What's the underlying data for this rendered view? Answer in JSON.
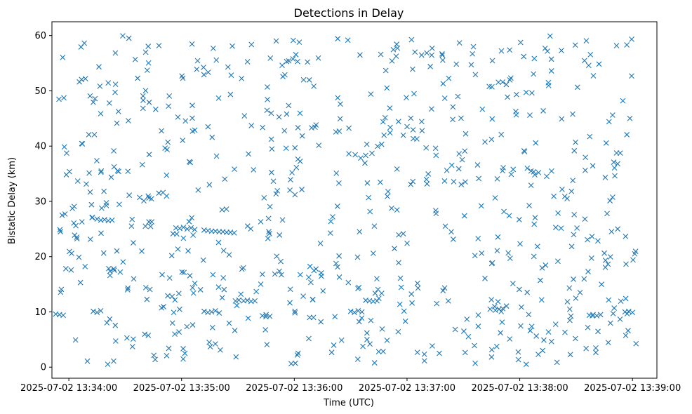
{
  "chart_data": {
    "type": "scatter",
    "title": "Detections in Delay",
    "xlabel": "Time (UTC)",
    "ylabel": "Bistatic Delay (km)",
    "marker": "x",
    "color": "#1f77b4",
    "xlim": [
      "2025-07-02 13:33:51",
      "2025-07-02 13:39:13"
    ],
    "ylim": [
      -2,
      62.5
    ],
    "x_ticks": [
      "2025-07-02 13:34:00",
      "2025-07-02 13:35:00",
      "2025-07-02 13:36:00",
      "2025-07-02 13:37:00",
      "2025-07-02 13:38:00",
      "2025-07-02 13:39:00"
    ],
    "y_ticks": [
      0,
      10,
      20,
      30,
      40,
      50,
      60
    ],
    "grid": false,
    "legend": "none",
    "clusters": [
      {
        "x": [
          "2025-07-02 13:33:53",
          "2025-07-02 13:33:55",
          "2025-07-02 13:33:57"
        ],
        "y": [
          9.6,
          9.5,
          9.4
        ]
      },
      {
        "x": [
          "2025-07-02 13:34:15",
          "2025-07-02 13:34:17",
          "2025-07-02 13:34:19",
          "2025-07-02 13:34:21",
          "2025-07-02 13:34:23"
        ],
        "y": [
          26.8,
          26.6,
          26.7,
          26.5,
          26.6
        ]
      },
      {
        "x": [
          "2025-07-02 13:34:13",
          "2025-07-02 13:34:15",
          "2025-07-02 13:34:17"
        ],
        "y": [
          10.1,
          9.9,
          10.2
        ]
      },
      {
        "x": [
          "2025-07-02 13:34:57",
          "2025-07-02 13:34:59",
          "2025-07-02 13:35:01",
          "2025-07-02 13:35:03",
          "2025-07-02 13:35:05",
          "2025-07-02 13:35:07"
        ],
        "y": [
          25.2,
          25.1,
          25.3,
          25.0,
          25.2,
          24.9
        ]
      },
      {
        "x": [
          "2025-07-02 13:35:12",
          "2025-07-02 13:35:14",
          "2025-07-02 13:35:16",
          "2025-07-02 13:35:18",
          "2025-07-02 13:35:20",
          "2025-07-02 13:35:22",
          "2025-07-02 13:35:24",
          "2025-07-02 13:35:26",
          "2025-07-02 13:35:28"
        ],
        "y": [
          24.8,
          24.7,
          24.6,
          24.6,
          24.5,
          24.5,
          24.4,
          24.4,
          24.3
        ]
      },
      {
        "x": [
          "2025-07-02 13:35:12",
          "2025-07-02 13:35:14",
          "2025-07-02 13:35:16",
          "2025-07-02 13:35:18",
          "2025-07-02 13:35:20"
        ],
        "y": [
          10.1,
          9.9,
          10.0,
          10.2,
          9.8
        ]
      },
      {
        "x": [
          "2025-07-02 13:35:33",
          "2025-07-02 13:35:35",
          "2025-07-02 13:35:37",
          "2025-07-02 13:35:39"
        ],
        "y": [
          12.0,
          12.1,
          11.9,
          12.0
        ]
      },
      {
        "x": [
          "2025-07-02 13:35:43",
          "2025-07-02 13:35:45",
          "2025-07-02 13:35:47"
        ],
        "y": [
          9.3,
          9.5,
          9.2
        ]
      },
      {
        "x": [
          "2025-07-02 13:36:30",
          "2025-07-02 13:36:32",
          "2025-07-02 13:36:34",
          "2025-07-02 13:36:36"
        ],
        "y": [
          10.1,
          9.9,
          10.2,
          10.0
        ]
      },
      {
        "x": [
          "2025-07-02 13:36:38",
          "2025-07-02 13:36:40",
          "2025-07-02 13:36:42",
          "2025-07-02 13:36:44"
        ],
        "y": [
          12.1,
          12.0,
          11.9,
          12.0
        ]
      },
      {
        "x": [
          "2025-07-02 13:37:47",
          "2025-07-02 13:37:49",
          "2025-07-02 13:37:51"
        ],
        "y": [
          10.3,
          10.5,
          10.6
        ]
      },
      {
        "x": [
          "2025-07-02 13:38:04",
          "2025-07-02 13:38:06",
          "2025-07-02 13:38:08",
          "2025-07-02 13:38:10"
        ],
        "y": [
          36.0,
          35.5,
          34.8,
          35.2
        ]
      },
      {
        "x": [
          "2025-07-02 13:38:37",
          "2025-07-02 13:38:39",
          "2025-07-02 13:38:41",
          "2025-07-02 13:38:43"
        ],
        "y": [
          9.4,
          9.5,
          9.3,
          9.5
        ]
      },
      {
        "x": [
          "2025-07-02 13:38:56",
          "2025-07-02 13:38:58",
          "2025-07-02 13:39:00"
        ],
        "y": [
          10.0,
          10.1,
          9.9
        ]
      }
    ],
    "scatter_count": 720,
    "scatter_y_range": [
      0.5,
      60
    ],
    "scatter_x_range": [
      "2025-07-02 13:33:52",
      "2025-07-02 13:39:02"
    ]
  }
}
